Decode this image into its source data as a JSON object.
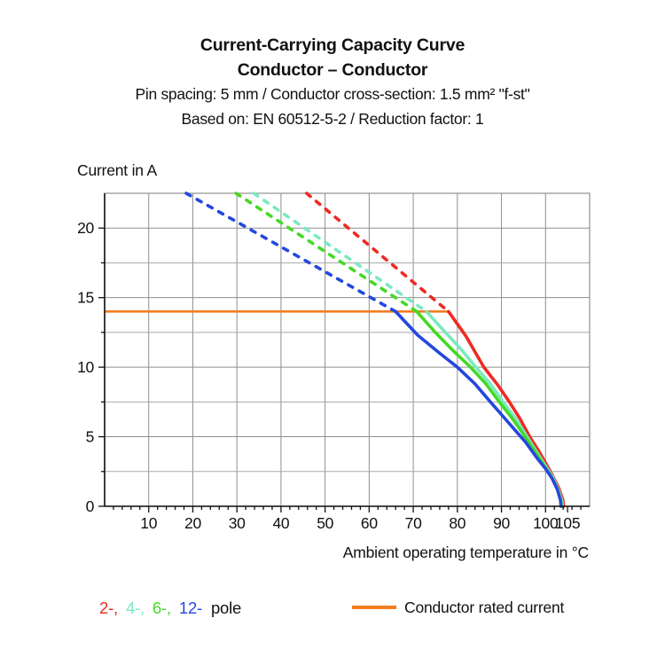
{
  "title": {
    "line1": "Current-Carrying Capacity Curve",
    "line2": "Conductor – Conductor",
    "line3": "Pin spacing: 5 mm / Conductor cross-section: 1.5 mm² \"f-st\"",
    "line4": "Based on: EN 60512-5-2 / Reduction factor: 1"
  },
  "chart_data": {
    "type": "line",
    "ylabel": "Current in A",
    "xlabel": "Ambient operating temperature in °C",
    "xlim": [
      0,
      110
    ],
    "ylim": [
      0,
      22.5
    ],
    "x_major_ticks": [
      10,
      20,
      30,
      40,
      50,
      60,
      70,
      80,
      90,
      100,
      105
    ],
    "x_grid_values": [
      10,
      20,
      30,
      40,
      50,
      60,
      70,
      80,
      90,
      100
    ],
    "x_minor_step": 2,
    "y_major_ticks": [
      0,
      5,
      10,
      15,
      20
    ],
    "y_grid_values": [
      2.5,
      5,
      7.5,
      10,
      12.5,
      15,
      17.5,
      20
    ],
    "y_minor_step": 2.5,
    "grid_color": "#8f8f8f",
    "axis_color": "#111111",
    "rated_current": {
      "value": 14,
      "x_start": 0,
      "x_end": 78.2,
      "color": "#f57d1f",
      "label": "Conductor rated current"
    },
    "series": [
      {
        "name": "2-pole",
        "color": "#ee2b22",
        "style": "dashed-then-solid",
        "dashed": [
          [
            45.8,
            22.5
          ],
          [
            78,
            14
          ]
        ],
        "solid": [
          [
            78,
            14
          ],
          [
            82,
            12.2
          ],
          [
            86,
            10
          ],
          [
            89.2,
            8.7
          ],
          [
            91.8,
            7.5
          ],
          [
            94.2,
            6.3
          ],
          [
            96.4,
            5
          ],
          [
            98.4,
            4
          ],
          [
            100.2,
            3
          ],
          [
            101.6,
            2.2
          ],
          [
            103,
            1.3
          ],
          [
            103.9,
            0.5
          ],
          [
            104.1,
            0
          ]
        ]
      },
      {
        "name": "4-pole",
        "color": "#7ce9c0",
        "style": "dashed-then-solid",
        "dashed": [
          [
            33.8,
            22.5
          ],
          [
            73,
            14
          ]
        ],
        "solid": [
          [
            73,
            14
          ],
          [
            77,
            12.6
          ],
          [
            80.8,
            11.3
          ],
          [
            84.2,
            10
          ],
          [
            87.5,
            8.8
          ],
          [
            90.4,
            7.5
          ],
          [
            93.2,
            6.3
          ],
          [
            95.8,
            5
          ],
          [
            98,
            3.9
          ],
          [
            100,
            2.9
          ],
          [
            101.6,
            2.1
          ],
          [
            102.9,
            1.2
          ],
          [
            103.7,
            0.4
          ],
          [
            103.8,
            0
          ]
        ]
      },
      {
        "name": "6-pole",
        "color": "#44d926",
        "style": "dashed-then-solid",
        "dashed": [
          [
            29.8,
            22.5
          ],
          [
            70.8,
            14
          ]
        ],
        "solid": [
          [
            70.8,
            14
          ],
          [
            75,
            12.5
          ],
          [
            79,
            11.2
          ],
          [
            83,
            10
          ],
          [
            86.5,
            8.8
          ],
          [
            89.5,
            7.5
          ],
          [
            92.5,
            6.3
          ],
          [
            95.4,
            5
          ],
          [
            97.5,
            4
          ],
          [
            99.5,
            3
          ],
          [
            101.2,
            2.2
          ],
          [
            102.6,
            1.3
          ],
          [
            103.4,
            0.5
          ],
          [
            103.6,
            0
          ]
        ]
      },
      {
        "name": "12-pole",
        "color": "#2448dd",
        "style": "dashed-then-solid",
        "dashed": [
          [
            18.5,
            22.5
          ],
          [
            66,
            14
          ]
        ],
        "solid": [
          [
            66,
            14
          ],
          [
            71,
            12.3
          ],
          [
            76,
            11
          ],
          [
            80,
            10
          ],
          [
            84,
            8.8
          ],
          [
            87.5,
            7.5
          ],
          [
            90,
            6.6
          ],
          [
            93,
            5.5
          ],
          [
            95.5,
            4.6
          ],
          [
            98,
            3.5
          ],
          [
            100,
            2.7
          ],
          [
            101.5,
            2.0
          ],
          [
            102.7,
            1.2
          ],
          [
            103.4,
            0.4
          ],
          [
            103.5,
            0
          ]
        ]
      }
    ]
  },
  "legend": {
    "poles": [
      {
        "label": "2-,",
        "color": "#ee2b22"
      },
      {
        "label": "4-,",
        "color": "#7ce9c0"
      },
      {
        "label": "6-,",
        "color": "#44d926"
      },
      {
        "label": "12-",
        "color": "#2448dd"
      }
    ],
    "suffix": "pole",
    "rated_label": "Conductor rated current",
    "rated_color": "#f57d1f"
  }
}
